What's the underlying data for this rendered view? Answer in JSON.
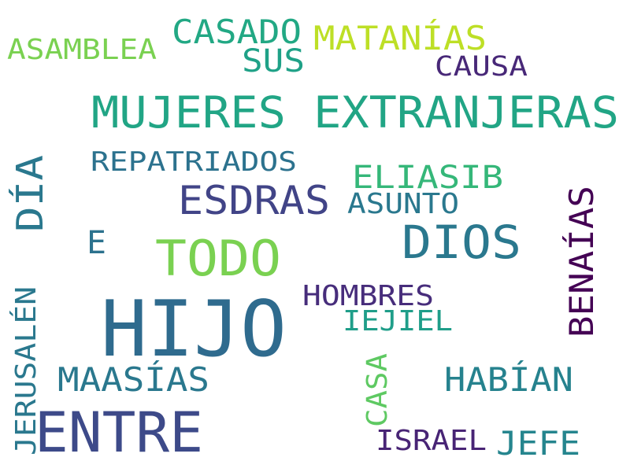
{
  "words": [
    {
      "text": "HIJO",
      "color": "#2f6b8e"
    },
    {
      "text": "ENTRE",
      "color": "#3d4a89"
    },
    {
      "text": "MUJERES EXTRANJERAS",
      "color": "#21a585"
    },
    {
      "text": "TODO",
      "color": "#7ad151"
    },
    {
      "text": "DIOS",
      "color": "#2a788e"
    },
    {
      "text": "ESDRAS",
      "color": "#414487"
    },
    {
      "text": "DÍA",
      "color": "#2a788e"
    },
    {
      "text": "BENAÍAS",
      "color": "#440154"
    },
    {
      "text": "JERUSALÉN",
      "color": "#2a788e"
    },
    {
      "text": "CASADO",
      "color": "#22a884"
    },
    {
      "text": "MATANÍAS",
      "color": "#bddf26"
    },
    {
      "text": "ASAMBLEA",
      "color": "#7ad151"
    },
    {
      "text": "SUS",
      "color": "#1fa187"
    },
    {
      "text": "CAUSA",
      "color": "#482878"
    },
    {
      "text": "REPATRIADOS",
      "color": "#2c728e"
    },
    {
      "text": "ELIASIB",
      "color": "#35b779"
    },
    {
      "text": "ASUNTO",
      "color": "#2a788e"
    },
    {
      "text": "E",
      "color": "#2c728e"
    },
    {
      "text": "HOMBRES",
      "color": "#472d7b"
    },
    {
      "text": "IEJIEL",
      "color": "#1f9e89"
    },
    {
      "text": "MAASÍAS",
      "color": "#2a788e"
    },
    {
      "text": "HABÍAN",
      "color": "#26828e"
    },
    {
      "text": "CASA",
      "color": "#5ec962"
    },
    {
      "text": "ISRAEL",
      "color": "#482475"
    },
    {
      "text": "JEFE",
      "color": "#25858e"
    }
  ]
}
